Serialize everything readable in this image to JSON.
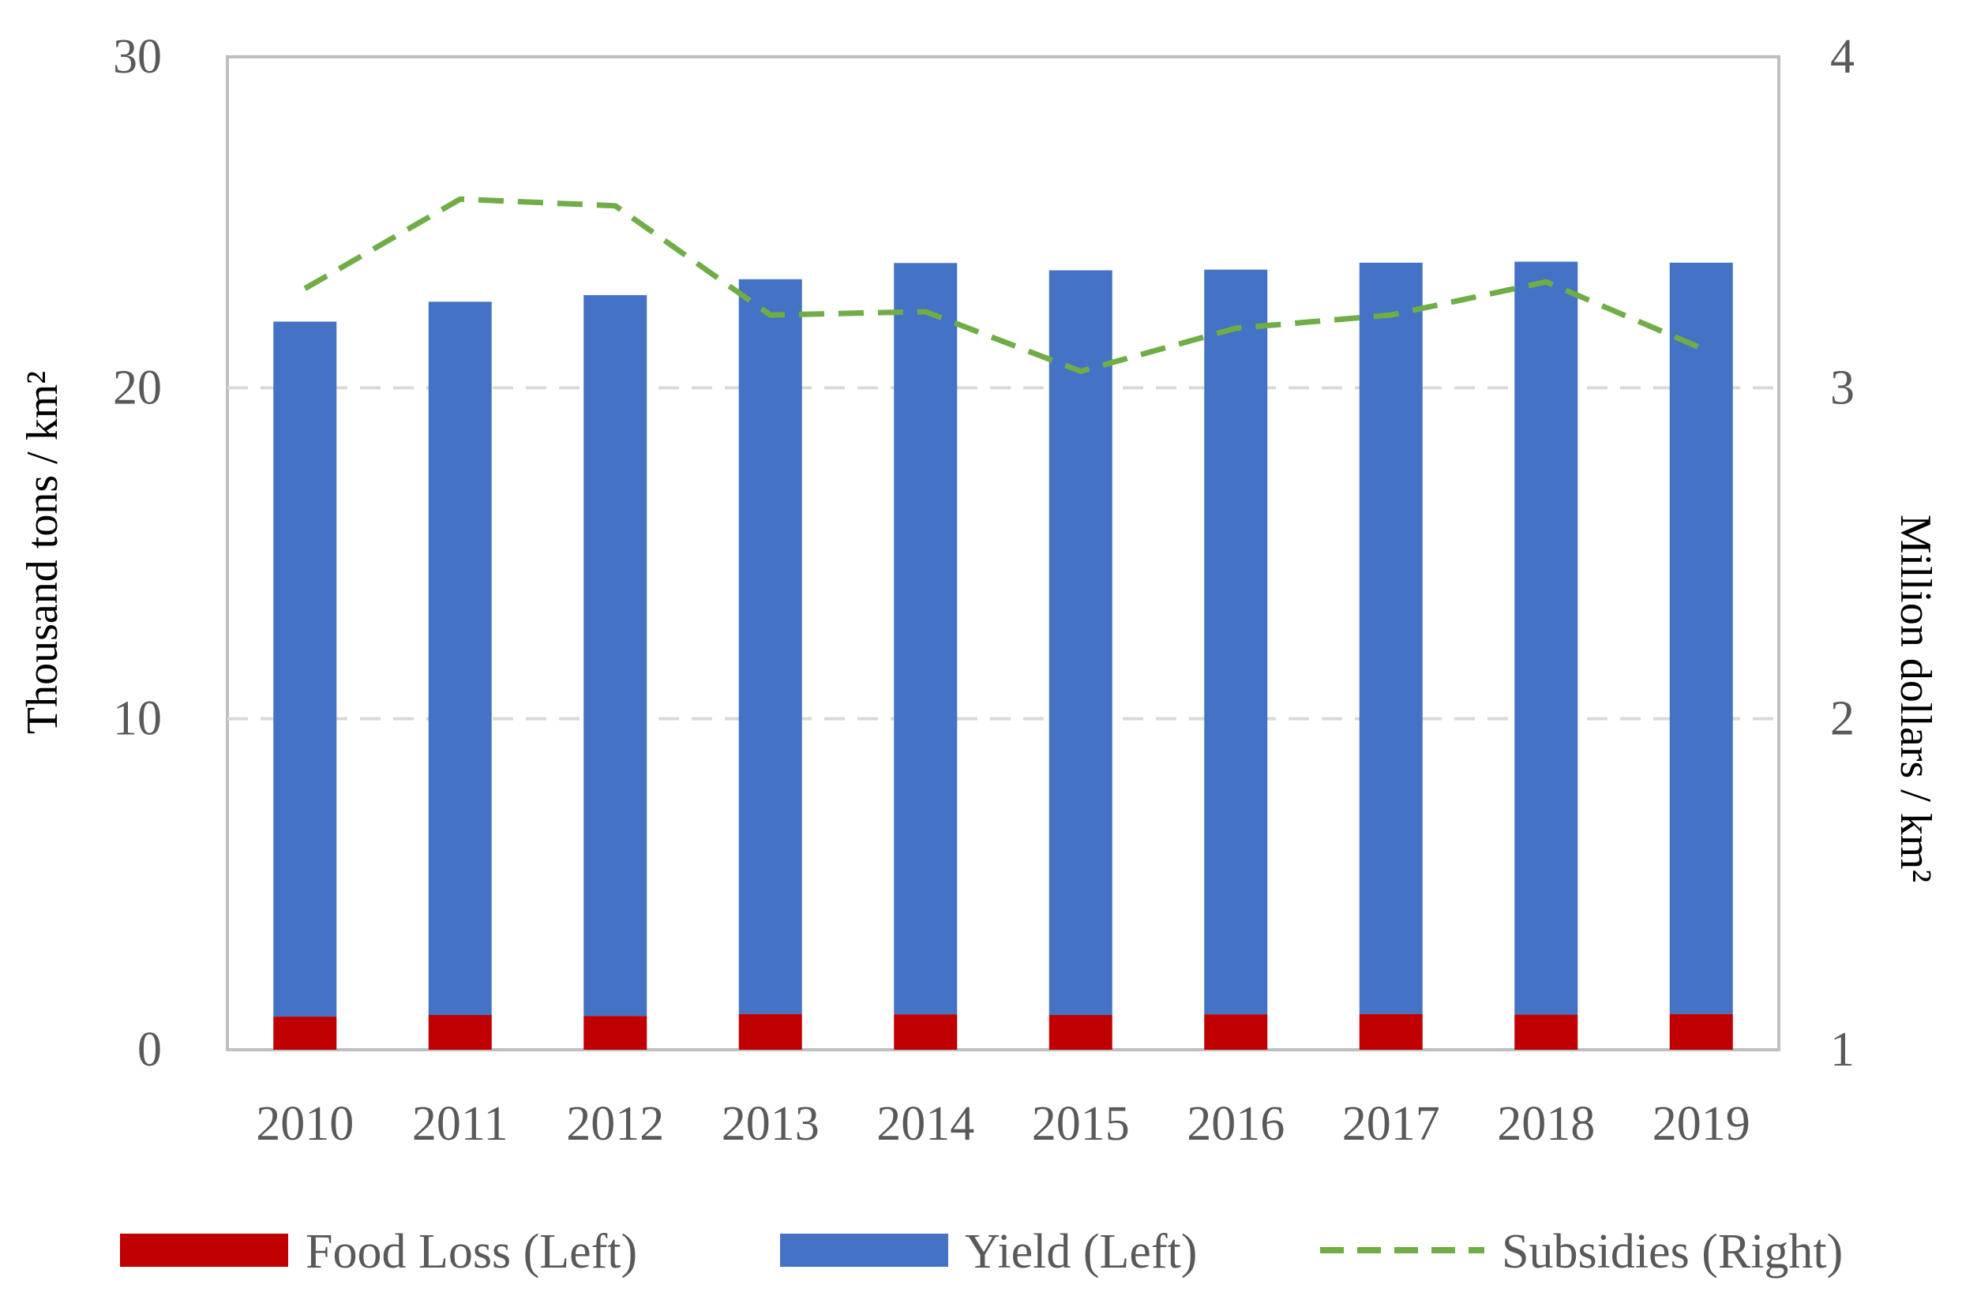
{
  "chart_data": {
    "type": "bar",
    "stacked": true,
    "categories": [
      "2010",
      "2011",
      "2012",
      "2013",
      "2014",
      "2015",
      "2016",
      "2017",
      "2018",
      "2019"
    ],
    "series": [
      {
        "name": "Food Loss (Left)",
        "axis": "left",
        "kind": "bar",
        "color": "#c00000",
        "values": [
          1.0,
          1.05,
          1.02,
          1.08,
          1.07,
          1.05,
          1.07,
          1.08,
          1.06,
          1.08
        ]
      },
      {
        "name": "Yield (Left)",
        "axis": "left",
        "kind": "bar",
        "color": "#4472c4",
        "values": [
          21.0,
          21.55,
          21.78,
          22.2,
          22.7,
          22.5,
          22.5,
          22.7,
          22.75,
          22.7
        ]
      },
      {
        "name": "Subsidies (Right)",
        "axis": "right",
        "kind": "line",
        "style": "dashed",
        "color": "#70ad47",
        "values": [
          3.3,
          3.57,
          3.55,
          3.22,
          3.23,
          3.05,
          3.18,
          3.22,
          3.32,
          3.12
        ]
      }
    ],
    "left_axis": {
      "label": "Thousand tons / km²",
      "ylim": [
        0,
        30
      ],
      "ticks": [
        "0",
        "10",
        "20",
        "30"
      ]
    },
    "right_axis": {
      "label": "Million dollars / km²",
      "ylim": [
        1,
        4
      ],
      "ticks": [
        "1",
        "2",
        "3",
        "4"
      ]
    },
    "grid": "dashed horizontal",
    "legend": "bottom"
  }
}
